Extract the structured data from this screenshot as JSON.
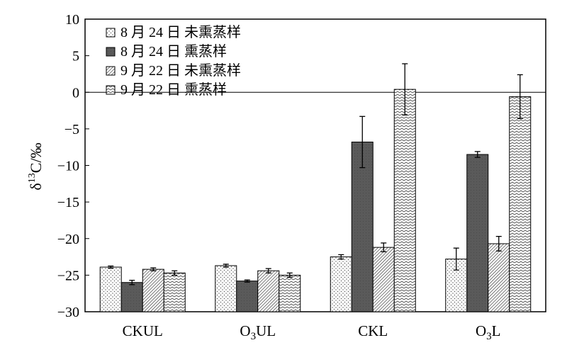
{
  "chart_data": {
    "type": "bar",
    "ylabel": "δ13C/‰",
    "ylim": [
      -30,
      10
    ],
    "yticks": [
      10,
      5,
      0,
      -5,
      -10,
      -15,
      -20,
      -25,
      -30
    ],
    "ytick_labels": [
      "10",
      "5",
      "0",
      "-5",
      "-10",
      "-15",
      "-20",
      "-25",
      "-30"
    ],
    "categories": [
      "CKUL",
      "O3UL",
      "CKL",
      "O3L"
    ],
    "legend_position": "top-left",
    "series": [
      {
        "name": "8 月 24 日 未熏蒸样",
        "pattern": "dots",
        "values": [
          -23.9,
          -23.7,
          -22.5,
          -22.8
        ],
        "errors": [
          0.15,
          0.2,
          0.3,
          1.5
        ]
      },
      {
        "name": "8 月 24 日 熏蒸样",
        "pattern": "solid-dark",
        "values": [
          -26.0,
          -25.8,
          -6.8,
          -8.5
        ],
        "errors": [
          0.3,
          0.15,
          3.5,
          0.4
        ]
      },
      {
        "name": "9 月 22 日 未熏蒸样",
        "pattern": "dense-diagonal",
        "values": [
          -24.2,
          -24.4,
          -21.2,
          -20.7
        ],
        "errors": [
          0.2,
          0.3,
          0.6,
          1.0
        ]
      },
      {
        "name": "9 月 22 日 熏蒸样",
        "pattern": "wave",
        "values": [
          -24.7,
          -25.0,
          0.4,
          -0.6
        ],
        "errors": [
          0.3,
          0.3,
          3.5,
          3.0
        ]
      }
    ]
  }
}
